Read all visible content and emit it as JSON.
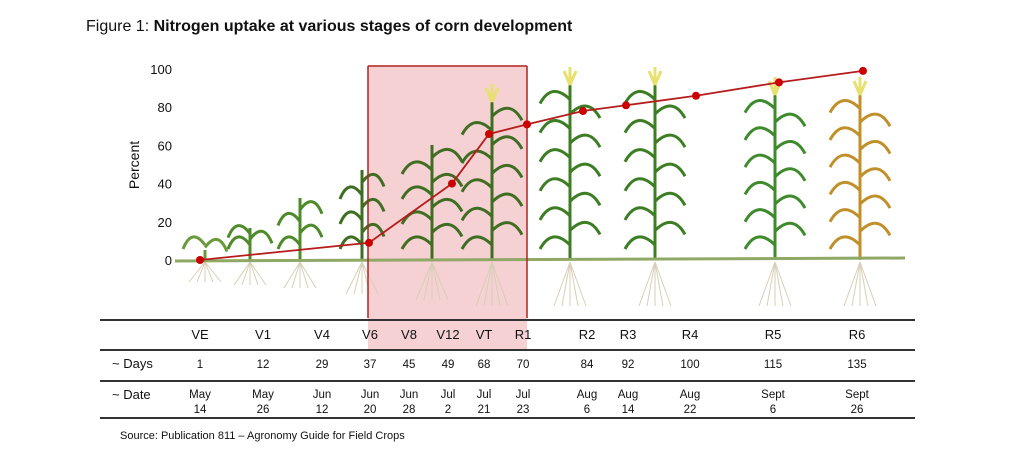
{
  "chart_data": {
    "type": "line",
    "title_prefix": "Figure 1: ",
    "title": "Nitrogen uptake at various stages of corn development",
    "ylabel": "Percent",
    "ylim": [
      0,
      100
    ],
    "yticks": [
      "0",
      "20",
      "40",
      "60",
      "80",
      "100"
    ],
    "grid": false,
    "highlight_region": {
      "from": "V6",
      "to": "R1",
      "color": "#f3c9cb"
    },
    "line_color": "#b71c1c",
    "marker_color": "#cc0000",
    "series": [
      {
        "x": [
          "VE",
          "V6",
          "V12",
          "VT",
          "R1",
          "R2",
          "R3",
          "R4",
          "R5",
          "R6"
        ],
        "values": [
          0,
          9,
          40,
          66,
          71,
          78,
          81,
          86,
          93,
          99
        ]
      }
    ],
    "table": {
      "stages": [
        "VE",
        "V1",
        "V4",
        "V6",
        "V8",
        "V12",
        "VT",
        "R1",
        "R2",
        "R3",
        "R4",
        "R5",
        "R6"
      ],
      "days_label": "~ Days",
      "days": [
        "1",
        "12",
        "29",
        "37",
        "45",
        "49",
        "68",
        "70",
        "84",
        "92",
        "100",
        "115",
        "135"
      ],
      "date_label": "~ Date",
      "date_month": [
        "May",
        "May",
        "Jun",
        "Jun",
        "Jun",
        "Jul",
        "Jul",
        "Jul",
        "Aug",
        "Aug",
        "Aug",
        "Sept",
        "Sept"
      ],
      "date_day": [
        "14",
        "26",
        "12",
        "20",
        "28",
        "2",
        "21",
        "23",
        "6",
        "14",
        "22",
        "6",
        "26"
      ]
    },
    "source": "Source: Publication 811 – Agronomy Guide for Field Crops"
  }
}
